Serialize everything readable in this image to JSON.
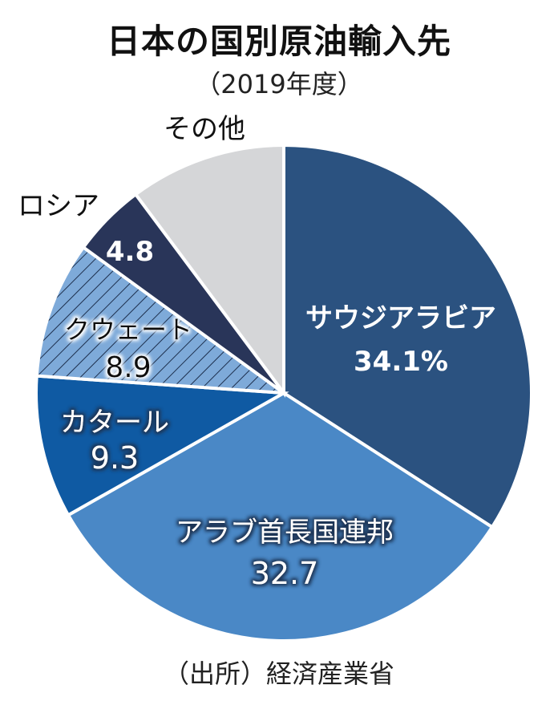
{
  "chart_data": {
    "type": "pie",
    "title": "日本の国別原油輸入先",
    "subtitle": "（2019年度）",
    "source": "（出所）経済産業省",
    "unit": "%",
    "start": "top",
    "direction": "clockwise",
    "slices": [
      {
        "label": "サウジアラビア",
        "value": 34.1,
        "value_text": "34.1%",
        "color": "#2b5280",
        "text_color": "#ffffff",
        "halo": "none"
      },
      {
        "label": "アラブ首長国連邦",
        "value": 32.7,
        "value_text": "32.7",
        "color": "#4a88c6",
        "text_color": "#ffffff",
        "halo": "#1c3557"
      },
      {
        "label": "カタール",
        "value": 9.3,
        "value_text": "9.3",
        "color": "#0f5aa3",
        "text_color": "#ffffff",
        "halo": "#1c3557"
      },
      {
        "label": "クウェート",
        "value": 8.9,
        "value_text": "8.9",
        "color": "#7eaad9",
        "hatch": true,
        "hatch_color": "#1d2f4d",
        "text_color": "#111111",
        "halo": "#ffffff"
      },
      {
        "label": "ロシア",
        "value": 4.8,
        "value_text": "4.8",
        "color": "#293559",
        "text_color": "#ffffff",
        "halo": "none"
      },
      {
        "label": "その他",
        "value": 10.2,
        "value_text": "",
        "color": "#d5d6d8",
        "text_color": "#111111",
        "halo": "none"
      }
    ]
  }
}
